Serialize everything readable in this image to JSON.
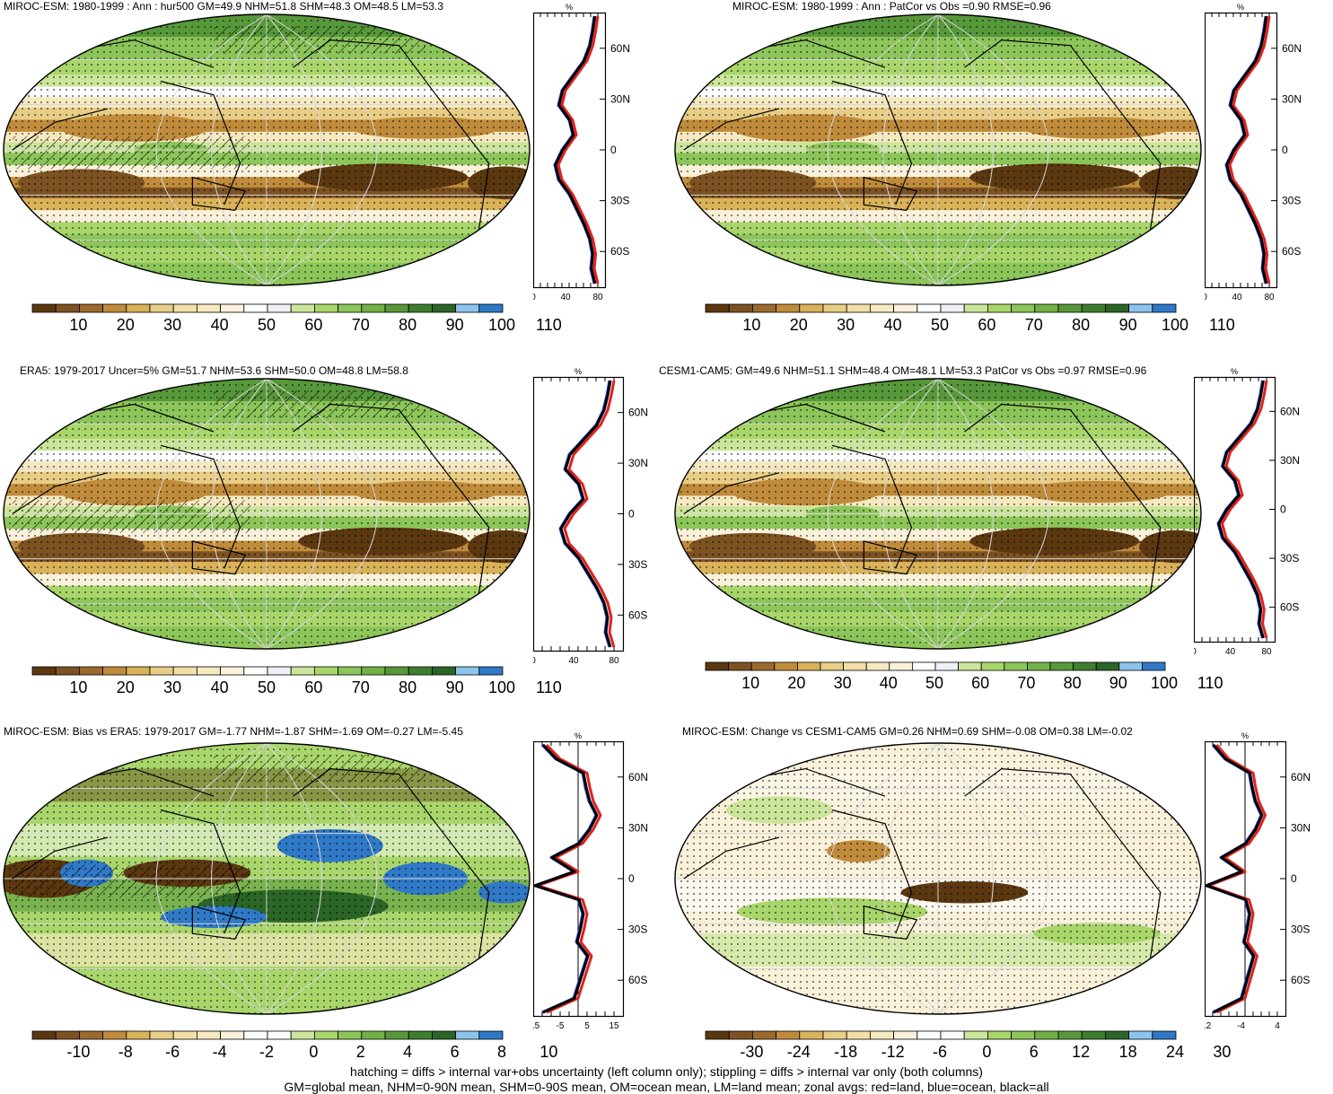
{
  "panels": [
    {
      "id": "p1",
      "title": "MIROC-ESM: 1980-1999 : Ann : hur500 GM=49.9 NHM=51.8 SHM=48.3 OM=48.5 LM=53.3",
      "zonal": {
        "unit": "%",
        "xticks": [
          "0",
          "40",
          "80"
        ],
        "yticks": [
          "60N",
          "30N",
          "0",
          "30S",
          "60S"
        ]
      },
      "colorbar": {
        "labels": [
          "10",
          "20",
          "30",
          "40",
          "50",
          "60",
          "70",
          "80",
          "90",
          "100",
          "110"
        ]
      }
    },
    {
      "id": "p2",
      "title": "MIROC-ESM: 1980-1999 : Ann : PatCor vs Obs =0.90 RMSE=0.96",
      "zonal": {
        "unit": "%",
        "xticks": [
          "0",
          "40",
          "80"
        ],
        "yticks": [
          "60N",
          "30N",
          "0",
          "30S",
          "60S"
        ]
      },
      "colorbar": {
        "labels": [
          "10",
          "20",
          "30",
          "40",
          "50",
          "60",
          "70",
          "80",
          "90",
          "100",
          "110"
        ]
      }
    },
    {
      "id": "p3",
      "title": "ERA5: 1979-2017 Uncer=5% GM=51.7 NHM=53.6 SHM=50.0 OM=48.8 LM=58.8",
      "zonal": {
        "unit": "%",
        "xticks": [
          "0",
          "40",
          "80"
        ],
        "yticks": [
          "60N",
          "30N",
          "0",
          "30S",
          "60S"
        ]
      },
      "colorbar": {
        "labels": [
          "10",
          "20",
          "30",
          "40",
          "50",
          "60",
          "70",
          "80",
          "90",
          "100",
          "110"
        ]
      }
    },
    {
      "id": "p4",
      "title": "CESM1-CAM5: GM=49.6 NHM=51.1 SHM=48.4 OM=48.1 LM=53.3 PatCor vs Obs =0.97 RMSE=0.96",
      "zonal": {
        "unit": "%",
        "xticks": [
          "0",
          "40",
          "80"
        ],
        "yticks": [
          "60N",
          "30N",
          "0",
          "30S",
          "60S"
        ]
      },
      "colorbar": {
        "labels": [
          "10",
          "20",
          "30",
          "40",
          "50",
          "60",
          "70",
          "80",
          "90",
          "100",
          "110"
        ]
      }
    },
    {
      "id": "p5",
      "title": "MIROC-ESM: Bias vs ERA5: 1979-2017 GM=-1.77 NHM=-1.87 SHM=-1.69 OM=-0.27 LM=-5.45",
      "zonal": {
        "unit": "%",
        "xticks": [
          "-15",
          "-5",
          "5",
          "15"
        ],
        "yticks": [
          "60N",
          "30N",
          "0",
          "30S",
          "60S"
        ]
      },
      "colorbar": {
        "labels": [
          "-10",
          "-8",
          "-6",
          "-4",
          "-2",
          "0",
          "2",
          "4",
          "6",
          "8",
          "10"
        ]
      }
    },
    {
      "id": "p6",
      "title": "MIROC-ESM: Change vs CESM1-CAM5 GM=0.26 NHM=0.69 SHM=-0.08 OM=0.38 LM=-0.02",
      "zonal": {
        "unit": "%",
        "xticks": [
          "-12",
          "-4",
          "4"
        ],
        "yticks": [
          "60N",
          "30N",
          "0",
          "30S",
          "60S"
        ]
      },
      "colorbar": {
        "labels": [
          "-30",
          "-24",
          "-18",
          "-12",
          "-6",
          "0",
          "6",
          "12",
          "18",
          "24",
          "30"
        ]
      }
    }
  ],
  "colors": {
    "mean_scale": [
      "#5b3810",
      "#7d5222",
      "#9c6a2e",
      "#c08c3b",
      "#d9b259",
      "#e8cd86",
      "#f1dfa6",
      "#f6e9c0",
      "#f9f1d9",
      "#ffffff",
      "#eef0f8",
      "#cbe59a",
      "#a9d66b",
      "#8cc559",
      "#72b046",
      "#57983a",
      "#3e7e2f",
      "#2b6626",
      "#8bc4ec",
      "#2f79c7"
    ],
    "diff_scale": [
      "#5b3810",
      "#7d5222",
      "#9c6a2e",
      "#c08c3b",
      "#d9b259",
      "#e8cd86",
      "#f1dfa6",
      "#f6e9c0",
      "#f9f1d9",
      "#ffffff",
      "#ffffff",
      "#cbe59a",
      "#a9d66b",
      "#8cc559",
      "#72b046",
      "#57983a",
      "#3e7e2f",
      "#2b6626",
      "#8bc4ec",
      "#2f79c7"
    ],
    "land_line": "#e02020",
    "ocean_line": "#1f3fd8",
    "all_line": "#000000"
  },
  "footnote": {
    "line1": "hatching = diffs > internal var+obs uncertainty (left column only); stippling = diffs > internal var only (both columns)",
    "line2": "GM=global mean, NHM=0-90N mean, SHM=0-90S mean, OM=ocean mean, LM=land mean; zonal avgs: red=land, blue=ocean, black=all"
  }
}
